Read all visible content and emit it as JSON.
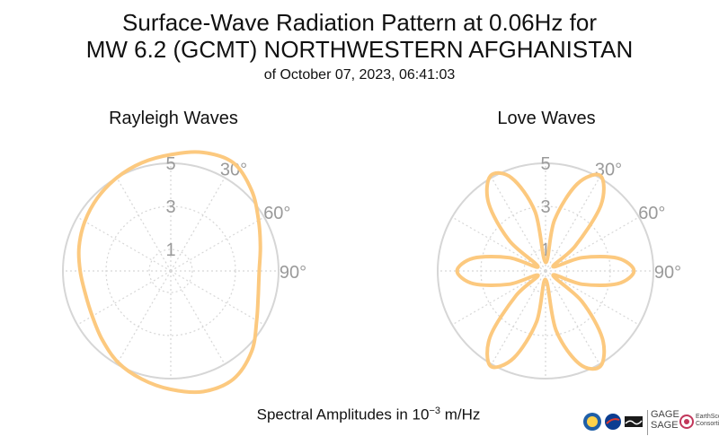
{
  "title": {
    "line1": "Surface-Wave Radiation Pattern at 0.06Hz for",
    "line2": "MW 6.2 (GCMT) NORTHWESTERN AFGHANISTAN",
    "line3": "of October 07, 2023, 06:41:03"
  },
  "footer": {
    "prefix": "Spectral Amplitudes in 10",
    "exponent": "−3",
    "suffix": " m/Hz"
  },
  "logos": {
    "gage": "GAGE",
    "sage": "SAGE",
    "earthscope": "EarthScope",
    "consortium": "Consortium"
  },
  "colors": {
    "curve": "#fcc97f",
    "grid": "#d6d6d6",
    "label": "#9a9a9a"
  },
  "chart_data": [
    {
      "type": "polar-line",
      "title": "Rayleigh Waves",
      "radial_ticks": [
        "1",
        "3",
        "5"
      ],
      "radial_tick_values": [
        1,
        3,
        5
      ],
      "rmax": 5,
      "angle_ticks": [
        "30°",
        "60°",
        "90°"
      ],
      "angle_tick_values": [
        30,
        60,
        90
      ],
      "series": [
        {
          "azimuth_deg": [
            0,
            15,
            30,
            45,
            60,
            75,
            90,
            105,
            120,
            135,
            150,
            165,
            180,
            195,
            210,
            225,
            240,
            255,
            270,
            285,
            300,
            315,
            330,
            345
          ],
          "amplitude": [
            5.4,
            5.7,
            5.8,
            5.3,
            4.7,
            4.3,
            4.1,
            4.2,
            4.6,
            5.3,
            5.8,
            5.8,
            5.5,
            5.2,
            4.9,
            4.5,
            4.2,
            4.1,
            4.2,
            4.4,
            4.6,
            4.8,
            5.0,
            5.2
          ]
        }
      ]
    },
    {
      "type": "polar-line",
      "title": "Love Waves",
      "radial_ticks": [
        "1",
        "3",
        "5"
      ],
      "radial_tick_values": [
        1,
        3,
        5
      ],
      "rmax": 5,
      "angle_ticks": [
        "30°",
        "60°",
        "90°"
      ],
      "angle_tick_values": [
        30,
        60,
        90
      ],
      "series": [
        {
          "azimuth_deg": [
            0,
            10,
            20,
            30,
            40,
            50,
            60,
            70,
            80,
            90,
            100,
            110,
            120,
            130,
            140,
            150,
            160,
            170,
            180,
            190,
            200,
            210,
            220,
            230,
            240,
            250,
            260,
            270,
            280,
            290,
            300,
            310,
            320,
            330,
            340,
            350
          ],
          "amplitude": [
            0.4,
            2.4,
            4.3,
            5.1,
            4.0,
            1.8,
            0.4,
            1.8,
            3.4,
            4.1,
            3.4,
            1.8,
            0.4,
            2.2,
            4.1,
            5.1,
            4.6,
            2.8,
            0.4,
            2.4,
            4.3,
            5.1,
            4.0,
            1.8,
            0.4,
            1.8,
            3.4,
            4.1,
            3.4,
            1.8,
            0.4,
            2.2,
            4.1,
            5.1,
            4.6,
            2.8
          ]
        }
      ]
    }
  ]
}
